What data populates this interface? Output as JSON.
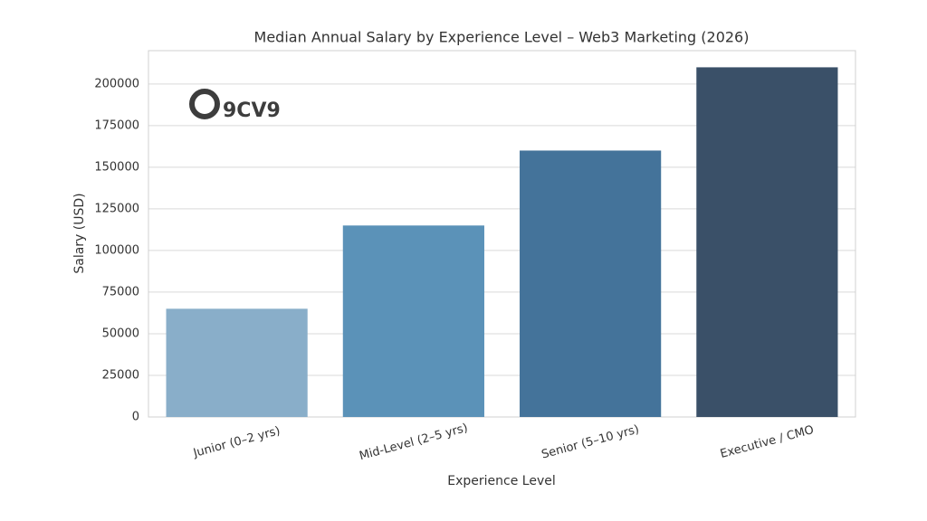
{
  "chart_data": {
    "type": "bar",
    "title": "Median Annual Salary by Experience Level – Web3 Marketing (2026)",
    "x_label": "Experience Level",
    "y_label": "Salary (USD)",
    "logo": "9CV9",
    "categories": [
      "Junior (0–2 yrs)",
      "Mid-Level (2–5 yrs)",
      "Senior (5–10 yrs)",
      "Executive / CMO"
    ],
    "values": [
      65000,
      115000,
      160000,
      210000
    ],
    "colors": [
      "#89aec9",
      "#5b92b8",
      "#44739a",
      "#3a5068"
    ],
    "ylim": [
      0,
      220000
    ],
    "yticks": [
      0,
      25000,
      50000,
      75000,
      100000,
      125000,
      150000,
      175000,
      200000
    ],
    "grid": true
  }
}
